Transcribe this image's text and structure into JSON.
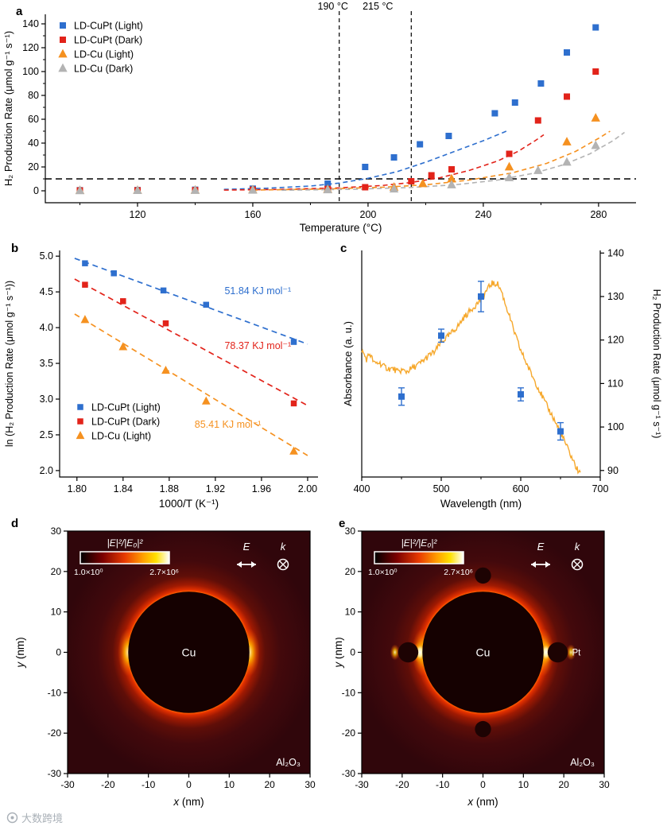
{
  "watermark": {
    "text": "大数跨境"
  },
  "chart_data": [
    {
      "panel": "a",
      "type": "scatter",
      "xlabel": "Temperature (°C)",
      "ylabel": "H₂ Production Rate (μmol g⁻¹ s⁻¹)",
      "xlim": [
        88,
        293
      ],
      "ylim": [
        -10,
        148
      ],
      "xticks": [
        120,
        160,
        200,
        240,
        280
      ],
      "yticks": [
        0,
        20,
        40,
        60,
        80,
        100,
        120,
        140
      ],
      "xtick_decimals": 0,
      "ytick_decimals": 0,
      "threshold_line_y": 10,
      "vlines": [
        {
          "x": 190,
          "label": "190 °C"
        },
        {
          "x": 215,
          "label": "215 °C"
        }
      ],
      "series": [
        {
          "name": "LD-CuPt (Light)",
          "color": "#2e6fce",
          "marker": "square",
          "points": [
            [
              100,
              0.5
            ],
            [
              120,
              0.6
            ],
            [
              140,
              0.9
            ],
            [
              160,
              1.8
            ],
            [
              186,
              6
            ],
            [
              199,
              20
            ],
            [
              209,
              28
            ],
            [
              218,
              39
            ],
            [
              228,
              46
            ],
            [
              244,
              65
            ],
            [
              251,
              74
            ],
            [
              260,
              90
            ],
            [
              269,
              116
            ],
            [
              279,
              137
            ]
          ],
          "fit": [
            [
              150,
              1.2
            ],
            [
              165,
              2.2
            ],
            [
              180,
              4
            ],
            [
              190,
              6.5
            ],
            [
              200,
              10.5
            ],
            [
              210,
              16
            ],
            [
              220,
              24
            ],
            [
              230,
              33
            ],
            [
              240,
              42
            ],
            [
              248,
              50
            ]
          ]
        },
        {
          "name": "LD-CuPt (Dark)",
          "color": "#e2231a",
          "marker": "square",
          "points": [
            [
              100,
              0.3
            ],
            [
              120,
              0.4
            ],
            [
              140,
              0.5
            ],
            [
              160,
              0.9
            ],
            [
              186,
              1.5
            ],
            [
              199,
              3
            ],
            [
              215,
              8
            ],
            [
              222,
              13
            ],
            [
              229,
              18
            ],
            [
              249,
              31
            ],
            [
              259,
              59
            ],
            [
              269,
              79
            ],
            [
              279,
              100
            ]
          ],
          "fit": [
            [
              150,
              0.6
            ],
            [
              170,
              1.2
            ],
            [
              190,
              2.5
            ],
            [
              205,
              4.5
            ],
            [
              215,
              7
            ],
            [
              225,
              11
            ],
            [
              235,
              17
            ],
            [
              245,
              25
            ],
            [
              252,
              33
            ],
            [
              258,
              42
            ],
            [
              261,
              47
            ]
          ]
        },
        {
          "name": "LD-Cu (Light)",
          "color": "#f59120",
          "marker": "triangle",
          "points": [
            [
              100,
              0.2
            ],
            [
              120,
              0.3
            ],
            [
              140,
              0.5
            ],
            [
              160,
              0.8
            ],
            [
              186,
              1.2
            ],
            [
              209,
              3
            ],
            [
              219,
              6
            ],
            [
              229,
              10
            ],
            [
              249,
              20
            ],
            [
              269,
              41
            ],
            [
              279,
              61
            ]
          ],
          "fit": [
            [
              160,
              0.6
            ],
            [
              185,
              1.5
            ],
            [
              205,
              3
            ],
            [
              220,
              5
            ],
            [
              235,
              9
            ],
            [
              250,
              15
            ],
            [
              262,
              23
            ],
            [
              272,
              33
            ],
            [
              280,
              44
            ],
            [
              284,
              50
            ]
          ]
        },
        {
          "name": "LD-Cu (Dark)",
          "color": "#b3b3b3",
          "marker": "triangle",
          "points": [
            [
              100,
              0.1
            ],
            [
              120,
              0.2
            ],
            [
              140,
              0.3
            ],
            [
              160,
              0.5
            ],
            [
              186,
              0.8
            ],
            [
              209,
              1.5
            ],
            [
              229,
              5
            ],
            [
              249,
              11
            ],
            [
              259,
              17
            ],
            [
              269,
              24
            ],
            [
              279,
              38
            ]
          ],
          "fit": [
            [
              170,
              0.5
            ],
            [
              195,
              1.3
            ],
            [
              215,
              2.8
            ],
            [
              230,
              5
            ],
            [
              245,
              9
            ],
            [
              258,
              15
            ],
            [
              268,
              22
            ],
            [
              277,
              31
            ],
            [
              285,
              42
            ],
            [
              289,
              49
            ]
          ]
        }
      ]
    },
    {
      "panel": "b",
      "type": "scatter",
      "xlabel": "1000/T (K⁻¹)",
      "ylabel": "ln (H₂ Production Rate (μmol g⁻¹ s⁻¹))",
      "xlim": [
        1.785,
        2.009
      ],
      "ylim": [
        1.91,
        5.08
      ],
      "xticks": [
        1.8,
        1.84,
        1.88,
        1.92,
        1.96,
        2.0
      ],
      "yticks": [
        2.0,
        2.5,
        3.0,
        3.5,
        4.0,
        4.5,
        5.0
      ],
      "xtick_decimals": 2,
      "ytick_decimals": 1,
      "series": [
        {
          "name": "LD-CuPt (Light)",
          "color": "#2e6fce",
          "marker": "square",
          "points": [
            [
              1.807,
              4.9
            ],
            [
              1.832,
              4.76
            ],
            [
              1.875,
              4.52
            ],
            [
              1.912,
              4.32
            ],
            [
              1.988,
              3.8
            ]
          ],
          "fit": [
            [
              1.798,
              4.97
            ],
            [
              2.0,
              3.77
            ]
          ],
          "annotation": {
            "text": "51.84 KJ mol⁻¹",
            "x": 1.928,
            "y": 4.47
          }
        },
        {
          "name": "LD-CuPt (Dark)",
          "color": "#e2231a",
          "marker": "square",
          "points": [
            [
              1.807,
              4.6
            ],
            [
              1.84,
              4.37
            ],
            [
              1.877,
              4.06
            ],
            [
              1.988,
              2.94
            ]
          ],
          "fit": [
            [
              1.798,
              4.68
            ],
            [
              2.0,
              2.91
            ]
          ],
          "annotation": {
            "text": "78.37 KJ mol⁻¹",
            "x": 1.928,
            "y": 3.7
          }
        },
        {
          "name": "LD-Cu (Light)",
          "color": "#f59120",
          "marker": "triangle",
          "points": [
            [
              1.807,
              4.11
            ],
            [
              1.84,
              3.73
            ],
            [
              1.877,
              3.4
            ],
            [
              1.912,
              2.97
            ],
            [
              1.988,
              2.27
            ]
          ],
          "fit": [
            [
              1.798,
              4.19
            ],
            [
              2.0,
              2.21
            ]
          ],
          "annotation": {
            "text": "85.41 KJ mol⁻¹",
            "x": 1.902,
            "y": 2.6
          }
        }
      ]
    },
    {
      "panel": "c",
      "type": "line+scatter",
      "xlabel": "Wavelength (nm)",
      "ylabel_left": "Absorbance (a. u.)",
      "ylabel_right": "H₂ Production Rate (μmol g⁻¹ s⁻¹)",
      "xlim": [
        400,
        700
      ],
      "xticks": [
        400,
        500,
        600,
        700
      ],
      "right_ylim": [
        88.5,
        140.6
      ],
      "right_yticks": [
        90,
        100,
        110,
        120,
        130,
        140
      ],
      "curve_color": "#f6a82c",
      "point_color": "#2e6fce",
      "absorbance_curve": [
        [
          400,
          0.56
        ],
        [
          406,
          0.52
        ],
        [
          410,
          0.545
        ],
        [
          416,
          0.5
        ],
        [
          422,
          0.505
        ],
        [
          428,
          0.487
        ],
        [
          434,
          0.478
        ],
        [
          440,
          0.477
        ],
        [
          446,
          0.462
        ],
        [
          450,
          0.472
        ],
        [
          456,
          0.465
        ],
        [
          462,
          0.477
        ],
        [
          468,
          0.49
        ],
        [
          474,
          0.503
        ],
        [
          480,
          0.522
        ],
        [
          486,
          0.54
        ],
        [
          492,
          0.553
        ],
        [
          498,
          0.585
        ],
        [
          504,
          0.607
        ],
        [
          510,
          0.625
        ],
        [
          516,
          0.648
        ],
        [
          522,
          0.67
        ],
        [
          528,
          0.702
        ],
        [
          534,
          0.725
        ],
        [
          540,
          0.748
        ],
        [
          546,
          0.768
        ],
        [
          550,
          0.788
        ],
        [
          556,
          0.818
        ],
        [
          560,
          0.838
        ],
        [
          564,
          0.857
        ],
        [
          567,
          0.848
        ],
        [
          570,
          0.858
        ],
        [
          573,
          0.838
        ],
        [
          576,
          0.818
        ],
        [
          580,
          0.77
        ],
        [
          585,
          0.72
        ],
        [
          590,
          0.66
        ],
        [
          595,
          0.608
        ],
        [
          600,
          0.558
        ],
        [
          605,
          0.52
        ],
        [
          610,
          0.48
        ],
        [
          615,
          0.443
        ],
        [
          620,
          0.408
        ],
        [
          625,
          0.372
        ],
        [
          630,
          0.333
        ],
        [
          635,
          0.3
        ],
        [
          640,
          0.268
        ],
        [
          645,
          0.232
        ],
        [
          650,
          0.198
        ],
        [
          655,
          0.158
        ],
        [
          660,
          0.118
        ],
        [
          665,
          0.08
        ],
        [
          670,
          0.04
        ],
        [
          675,
          0.012
        ]
      ],
      "rate_points": [
        {
          "x": 450,
          "y": 107,
          "err": 2
        },
        {
          "x": 500,
          "y": 121,
          "err": 1.5
        },
        {
          "x": 550,
          "y": 130,
          "err": 3.5
        },
        {
          "x": 600,
          "y": 107.5,
          "err": 1.5
        },
        {
          "x": 650,
          "y": 99,
          "err": 2
        }
      ]
    },
    {
      "panel": "d",
      "type": "heatmap",
      "xlabel": "x (nm)",
      "ylabel": "y (nm)",
      "xlim": [
        -30,
        30
      ],
      "ylim": [
        -30,
        30
      ],
      "xticks": [
        -30,
        -20,
        -10,
        0,
        10,
        20,
        30
      ],
      "yticks": [
        -30,
        -20,
        -10,
        0,
        10,
        20,
        30
      ],
      "colorbar": {
        "title": "|E|²/|E₀|²",
        "min_label": "1.0×10⁰",
        "max_label": "2.7×10⁶"
      },
      "field_labels": {
        "E": "E",
        "k": "k"
      },
      "particle_label": "Cu",
      "substrate_label": "Al₂O₃",
      "cu_radius_nm": 15,
      "satellites": []
    },
    {
      "panel": "e",
      "type": "heatmap",
      "xlabel": "x (nm)",
      "ylabel": "y (nm)",
      "xlim": [
        -30,
        30
      ],
      "ylim": [
        -30,
        30
      ],
      "xticks": [
        -30,
        -20,
        -10,
        0,
        10,
        20,
        30
      ],
      "yticks": [
        -30,
        -20,
        -10,
        0,
        10,
        20,
        30
      ],
      "colorbar": {
        "title": "|E|²/|E₀|²",
        "min_label": "1.0×10⁰",
        "max_label": "2.7×10⁶"
      },
      "field_labels": {
        "E": "E",
        "k": "k"
      },
      "particle_label": "Cu",
      "substrate_label": "Al₂O₃",
      "pt_label": "Pt",
      "cu_radius_nm": 15,
      "satellites": [
        {
          "x": -18.5,
          "y": 0,
          "r": 2.5,
          "hot": true
        },
        {
          "x": 18.5,
          "y": 0,
          "r": 2.5,
          "hot": true
        },
        {
          "x": 0,
          "y": 19,
          "r": 2,
          "hot": false
        },
        {
          "x": 0,
          "y": -19,
          "r": 2,
          "hot": false
        }
      ]
    }
  ]
}
